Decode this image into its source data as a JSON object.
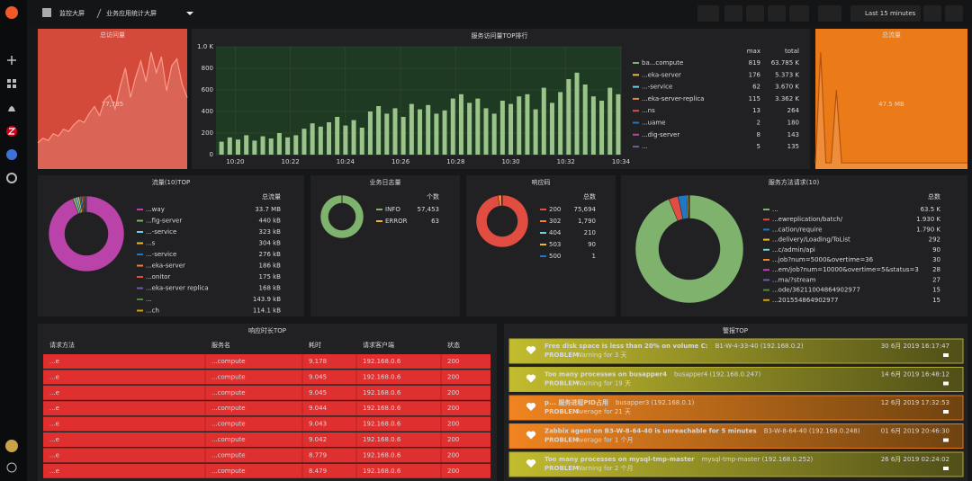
{
  "header": {
    "folder": "监控大屏",
    "title": "业务应用统计大屏",
    "time_range": "Last 15 minutes"
  },
  "stats": [
    {
      "title": "总访问量",
      "value": "77,785",
      "color": "#d44a3a",
      "line": "#ff9a8a",
      "sparkline": [
        20,
        24,
        22,
        28,
        26,
        32,
        30,
        36,
        40,
        38,
        46,
        52,
        44,
        58,
        62,
        50,
        70,
        86,
        60,
        78,
        92,
        74,
        100,
        82,
        96,
        66,
        88,
        94,
        72,
        60
      ]
    },
    {
      "title": "总流量",
      "value": "47.5 MB",
      "color": "#eb7b18",
      "line": "#b3530c",
      "sparkline": [
        2,
        90,
        2,
        2,
        60,
        2,
        2,
        2,
        2,
        2,
        2,
        2,
        2,
        2,
        2,
        2,
        2,
        2,
        2,
        2,
        2,
        2,
        2,
        2,
        2,
        2,
        2,
        2,
        2,
        2
      ]
    }
  ],
  "chart_data": [
    {
      "type": "bar",
      "title": "服务访问量TOP排行",
      "x": [
        19.5,
        19.8,
        20.1,
        20.4,
        20.7,
        21.0,
        21.3,
        21.6,
        21.9,
        22.2,
        22.5,
        22.8,
        23.1,
        23.4,
        23.7,
        24.0,
        24.3,
        24.6,
        24.9,
        25.2,
        25.5,
        25.8,
        26.1,
        26.4,
        26.7,
        27.0,
        27.3,
        27.6,
        27.9,
        28.2,
        28.5,
        28.8,
        29.1,
        29.4,
        29.7,
        30.0,
        30.3,
        30.6,
        30.9,
        31.2,
        31.5,
        31.8,
        32.1,
        32.4,
        32.7,
        33.0,
        33.3,
        33.6,
        33.9
      ],
      "series": [
        {
          "name": "ba...compute",
          "color": "#9ac48a",
          "values": [
            120,
            160,
            140,
            180,
            130,
            170,
            150,
            200,
            160,
            180,
            240,
            290,
            260,
            300,
            350,
            270,
            320,
            250,
            400,
            450,
            380,
            430,
            350,
            470,
            420,
            460,
            380,
            410,
            520,
            560,
            480,
            520,
            430,
            380,
            500,
            470,
            540,
            560,
            420,
            620,
            480,
            580,
            700,
            760,
            650,
            540,
            500,
            620,
            560
          ]
        }
      ],
      "xlim": [
        19.3,
        34.0
      ],
      "xticks": [
        {
          "value": 20,
          "label": "10:20"
        },
        {
          "value": 22,
          "label": "10:22"
        },
        {
          "value": 24,
          "label": "10:24"
        },
        {
          "value": 26,
          "label": "10:26"
        },
        {
          "value": 28,
          "label": "10:28"
        },
        {
          "value": 30,
          "label": "10:30"
        },
        {
          "value": 32,
          "label": "10:32"
        },
        {
          "value": 34,
          "label": "10:34"
        }
      ],
      "ylim": [
        0,
        1000
      ],
      "yticks": [
        0,
        200,
        400,
        600,
        800,
        {
          "value": 1000,
          "label": "1.0 K"
        }
      ],
      "grid": true,
      "legend_columns": [
        "max",
        "total"
      ],
      "legend": [
        {
          "name": "ba...compute",
          "color": "#7eb26d",
          "max": 819,
          "total": "63.785 K"
        },
        {
          "name": "...eka-server",
          "color": "#eab839",
          "max": 176,
          "total": "5.373 K"
        },
        {
          "name": "...-service",
          "color": "#6ed0e0",
          "max": 62,
          "total": "3.670 K"
        },
        {
          "name": "...eka-server-replica",
          "color": "#ef843c",
          "max": 115,
          "total": "3.362 K"
        },
        {
          "name": "...ns",
          "color": "#e24d42",
          "max": 13,
          "total": 264
        },
        {
          "name": "...uame",
          "color": "#1f78c1",
          "max": 2,
          "total": 180
        },
        {
          "name": "...dig-server",
          "color": "#ba43a9",
          "max": 8,
          "total": 143
        },
        {
          "name": "...",
          "color": "#705da0",
          "max": 5,
          "total": 135
        }
      ]
    },
    {
      "type": "pie",
      "title": "流量(10)TOP",
      "legend_header": "总流量",
      "categories": [
        "...way",
        "...fig-server",
        "...-service",
        "...s",
        "...-service",
        "...eka-server",
        "...onitor",
        "...eka-server replica",
        "...",
        "...ch"
      ],
      "values": [
        33700,
        440,
        323,
        304,
        276,
        186,
        175,
        168,
        143.9,
        114.1
      ],
      "value_labels": [
        "33.7 MB",
        "440 kB",
        "323 kB",
        "304 kB",
        "276 kB",
        "186 kB",
        "175 kB",
        "168 kB",
        "143.9 kB",
        "114.1 kB"
      ],
      "colors": [
        "#ba43a9",
        "#7eb26d",
        "#6ed0e0",
        "#eab839",
        "#1f78c1",
        "#ef843c",
        "#e24d42",
        "#705da0",
        "#508642",
        "#cca300"
      ]
    },
    {
      "type": "pie",
      "title": "业务日志量",
      "legend_header": "个数",
      "categories": [
        "INFO",
        "ERROR"
      ],
      "values": [
        57453,
        63
      ],
      "value_labels": [
        "57,453",
        "63"
      ],
      "colors": [
        "#7eb26d",
        "#eab839"
      ]
    },
    {
      "type": "pie",
      "title": "响应码",
      "legend_header": "总数",
      "categories": [
        "200",
        "302",
        "404",
        "503",
        "500"
      ],
      "values": [
        75694,
        1790,
        210,
        90,
        1
      ],
      "value_labels": [
        "75,694",
        "1,790",
        "210",
        "90",
        "1"
      ],
      "colors": [
        "#e24d42",
        "#ef843c",
        "#6ed0e0",
        "#eab839",
        "#1f78c1"
      ]
    },
    {
      "type": "pie",
      "title": "服务方法请求(10)",
      "legend_header": "总数",
      "categories": [
        "...",
        "...ewreplication/batch/",
        "...cation/require",
        "...delivery/Loading/ToList",
        "...c/admin/api",
        "...job?num=5000&overtime=36",
        "...em/job?num=10000&overtime=5&status=3",
        "...ma/?stream",
        "...ode/36211004864902977",
        "...201554864902977"
      ],
      "values": [
        63500,
        1930,
        1790,
        292,
        90,
        30,
        28,
        27,
        15,
        15
      ],
      "value_labels": [
        "63.5 K",
        "1.930 K",
        "1.790 K",
        "292",
        "90",
        "30",
        "28",
        "27",
        "15",
        "15"
      ],
      "colors": [
        "#7eb26d",
        "#e24d42",
        "#1f78c1",
        "#eab839",
        "#6ed0e0",
        "#ef843c",
        "#ba43a9",
        "#705da0",
        "#508642",
        "#cca300"
      ]
    }
  ],
  "table": {
    "title": "响应时长TOP",
    "columns": [
      "请求方法",
      "服务名",
      "耗时",
      "请求客户端",
      "状态"
    ],
    "rows": [
      [
        "...e",
        "...compute",
        "9.178",
        "192.168.0.6",
        "200"
      ],
      [
        "...e",
        "...compute",
        "9.045",
        "192.168.0.6",
        "200"
      ],
      [
        "...e",
        "...compute",
        "9.045",
        "192.168.0.6",
        "200"
      ],
      [
        "...e",
        "...compute",
        "9.044",
        "192.168.0.6",
        "200"
      ],
      [
        "...e",
        "...compute",
        "9.043",
        "192.168.0.6",
        "200"
      ],
      [
        "...e",
        "...compute",
        "9.042",
        "192.168.0.6",
        "200"
      ],
      [
        "...e",
        "...compute",
        "8.779",
        "192.168.0.6",
        "200"
      ],
      [
        "...e",
        "...compute",
        "8.479",
        "192.168.0.6",
        "200"
      ]
    ]
  },
  "alerts": {
    "title": "警报TOP",
    "items": [
      {
        "name": "Free disk space is less than 20% on volume C:",
        "host": "B1-W-4-33-40 (192.168.0.2)",
        "status": "PROBLEM",
        "detail": "Warning for 3 天",
        "time": "30 6月 2019 16:17:47",
        "color": "#b3ad2a"
      },
      {
        "name": "Too many processes on busapper4",
        "host": "busapper4 (192.168.0.247)",
        "status": "PROBLEM",
        "detail": "Warning for 19 天",
        "time": "14 6月 2019 16:48:12",
        "color": "#b3ad2a"
      },
      {
        "name": "p... 服务进程PID占用",
        "host": "busapper3 (192.168.0.1)",
        "status": "PROBLEM",
        "detail": "Average for 21 天",
        "time": "12 6月 2019 17:32:53",
        "color": "#e8791a"
      },
      {
        "name": "Zabbix agent on B3-W-8-64-40 is unreachable for 5 minutes",
        "host": "B3-W-8-64-40 (192.168.0.248)",
        "status": "PROBLEM",
        "detail": "Average for 1 个月",
        "time": "01 6月 2019 20:46:30",
        "color": "#e8791a"
      },
      {
        "name": "Too many processes on mysql-tmp-master",
        "host": "mysql-tmp-master (192.168.0.252)",
        "status": "PROBLEM",
        "detail": "Warning for 2 个月",
        "time": "26 6月 2019 02:24:02",
        "color": "#b3ad2a"
      }
    ]
  }
}
